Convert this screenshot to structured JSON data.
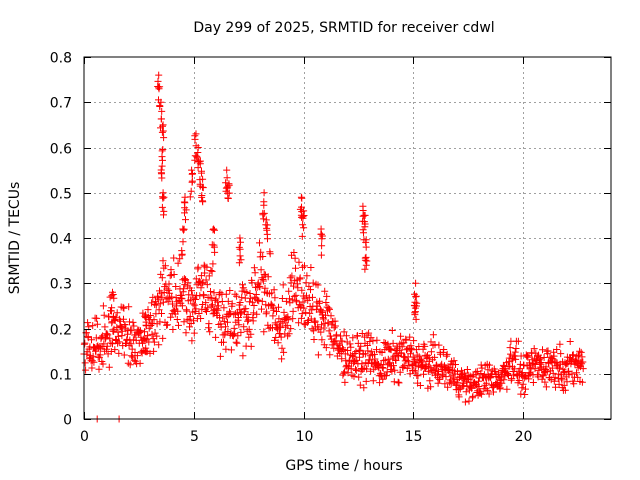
{
  "chart_data": {
    "type": "scatter",
    "title": "Day 299 of 2025, SRMTID for receiver cdwl",
    "xlabel": "GPS time / hours",
    "ylabel": "SRMTID / TECUs",
    "xlim": [
      0,
      24
    ],
    "ylim": [
      0,
      0.8
    ],
    "xticks": [
      0,
      5,
      10,
      15,
      20
    ],
    "yticks": [
      0,
      0.1,
      0.2,
      0.3,
      0.4,
      0.5,
      0.6,
      0.7,
      0.8
    ],
    "xtick_labels": [
      "0",
      "5",
      "10",
      "15",
      "20"
    ],
    "ytick_labels": [
      "0",
      "0.1",
      "0.2",
      "0.3",
      "0.4",
      "0.5",
      "0.6",
      "0.7",
      "0.8"
    ],
    "grid": true,
    "marker": "+",
    "series": [
      {
        "name": "SRMTID",
        "color": "#ff0000",
        "trend": [
          [
            0.0,
            0.16
          ],
          [
            0.5,
            0.17
          ],
          [
            1.0,
            0.18
          ],
          [
            1.5,
            0.2
          ],
          [
            2.0,
            0.18
          ],
          [
            2.5,
            0.16
          ],
          [
            3.0,
            0.19
          ],
          [
            3.5,
            0.27
          ],
          [
            4.0,
            0.29
          ],
          [
            4.5,
            0.27
          ],
          [
            5.0,
            0.25
          ],
          [
            5.5,
            0.3
          ],
          [
            6.0,
            0.24
          ],
          [
            6.5,
            0.22
          ],
          [
            7.0,
            0.24
          ],
          [
            7.5,
            0.23
          ],
          [
            8.0,
            0.31
          ],
          [
            8.5,
            0.25
          ],
          [
            9.0,
            0.2
          ],
          [
            9.5,
            0.28
          ],
          [
            10.0,
            0.28
          ],
          [
            10.5,
            0.22
          ],
          [
            11.0,
            0.24
          ],
          [
            11.5,
            0.16
          ],
          [
            12.0,
            0.14
          ],
          [
            12.5,
            0.13
          ],
          [
            13.0,
            0.14
          ],
          [
            13.5,
            0.12
          ],
          [
            14.0,
            0.13
          ],
          [
            14.5,
            0.14
          ],
          [
            15.0,
            0.13
          ],
          [
            15.5,
            0.12
          ],
          [
            16.0,
            0.12
          ],
          [
            16.5,
            0.11
          ],
          [
            17.0,
            0.09
          ],
          [
            17.5,
            0.075
          ],
          [
            18.0,
            0.08
          ],
          [
            18.5,
            0.09
          ],
          [
            19.0,
            0.09
          ],
          [
            19.5,
            0.14
          ],
          [
            20.0,
            0.09
          ],
          [
            20.5,
            0.12
          ],
          [
            21.0,
            0.12
          ],
          [
            21.5,
            0.12
          ],
          [
            22.0,
            0.11
          ],
          [
            22.5,
            0.12
          ],
          [
            22.75,
            0.12
          ]
        ],
        "spikes": [
          [
            3.4,
            0.76
          ],
          [
            3.5,
            0.7
          ],
          [
            3.6,
            0.65
          ],
          [
            3.55,
            0.58
          ],
          [
            3.6,
            0.5
          ],
          [
            5.1,
            0.63
          ],
          [
            5.2,
            0.6
          ],
          [
            5.3,
            0.57
          ],
          [
            5.4,
            0.53
          ],
          [
            4.9,
            0.55
          ],
          [
            4.6,
            0.49
          ],
          [
            6.5,
            0.55
          ],
          [
            6.6,
            0.52
          ],
          [
            8.2,
            0.5
          ],
          [
            9.9,
            0.49
          ],
          [
            10.0,
            0.46
          ],
          [
            12.7,
            0.47
          ],
          [
            12.8,
            0.45
          ],
          [
            12.85,
            0.38
          ],
          [
            15.1,
            0.3
          ],
          [
            15.1,
            0.27
          ],
          [
            5.9,
            0.42
          ],
          [
            7.1,
            0.4
          ],
          [
            10.8,
            0.42
          ],
          [
            8.3,
            0.44
          ],
          [
            4.5,
            0.42
          ],
          [
            1.3,
            0.28
          ],
          [
            2.8,
            0.23
          ],
          [
            0.6,
            0.0
          ],
          [
            1.6,
            0.0
          ]
        ]
      }
    ]
  }
}
